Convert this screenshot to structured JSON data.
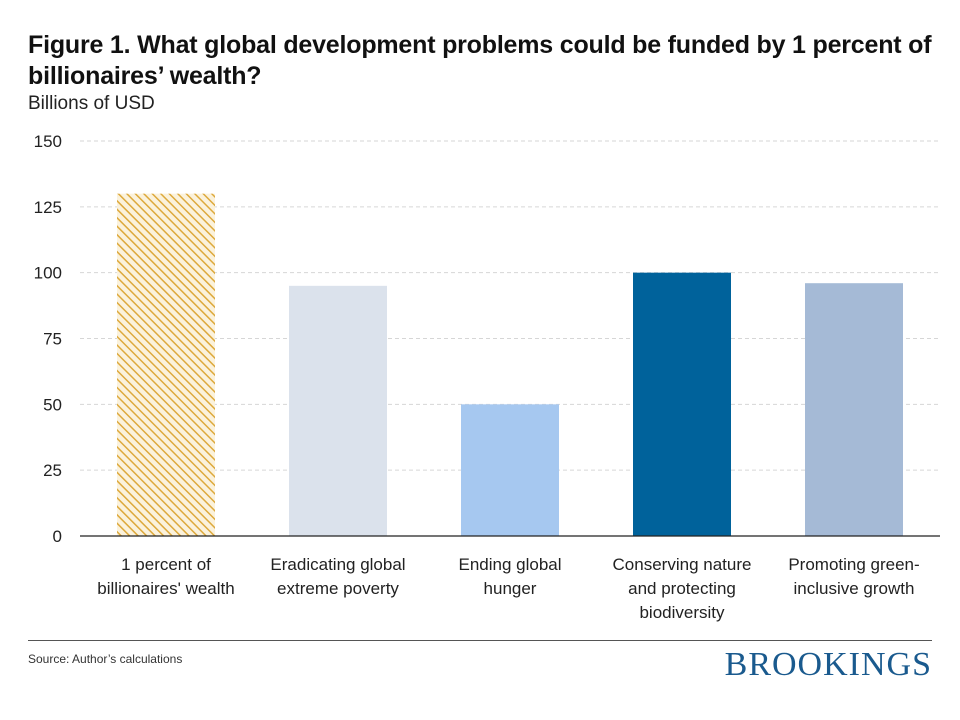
{
  "header": {
    "title": "Figure 1. What global development problems could be funded by 1 percent of billionaires’ wealth?",
    "subtitle": "Billions of USD"
  },
  "footer": {
    "source": "Source: Author’s calculations",
    "logo": "BROOKINGS"
  },
  "chart_data": {
    "type": "bar",
    "title": "Figure 1. What global development problems could be funded by 1 percent of billionaires’ wealth?",
    "ylabel": "Billions of USD",
    "xlabel": "",
    "ylim": [
      0,
      150
    ],
    "yticks": [
      0,
      25,
      50,
      75,
      100,
      125,
      150
    ],
    "grid": true,
    "categories": [
      [
        "1 percent of",
        "billionaires' wealth"
      ],
      [
        "Eradicating global",
        "extreme poverty"
      ],
      [
        "Ending global",
        "hunger"
      ],
      [
        "Conserving nature",
        "and protecting",
        "biodiversity"
      ],
      [
        "Promoting green-",
        "inclusive growth"
      ]
    ],
    "values": [
      130,
      95,
      50,
      100,
      96
    ],
    "colors": [
      "#e8b84a",
      "#dbe2ec",
      "#a6c8f0",
      "#00629b",
      "#a5bad6"
    ],
    "hatched": [
      true,
      false,
      false,
      false,
      false
    ]
  }
}
